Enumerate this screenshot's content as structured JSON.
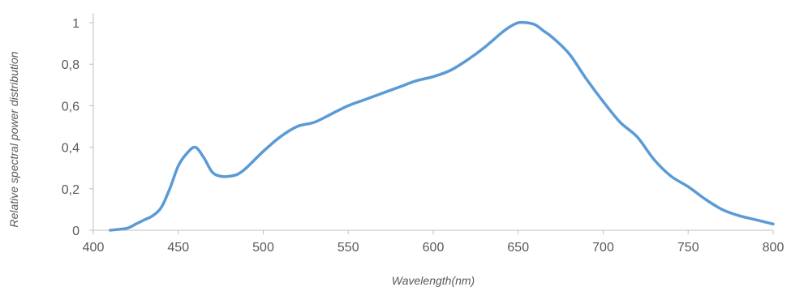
{
  "chart_data": {
    "type": "line",
    "title": "",
    "xlabel": "Wavelength(nm)",
    "ylabel": "Relative spectral power distribution",
    "xlim": [
      400,
      800
    ],
    "ylim": [
      0,
      1
    ],
    "x_ticks": [
      400,
      450,
      500,
      550,
      600,
      650,
      700,
      750,
      800
    ],
    "y_ticks": [
      0,
      0.2,
      0.4,
      0.6,
      0.8,
      1
    ],
    "x_tick_labels": [
      "400",
      "450",
      "500",
      "550",
      "600",
      "650",
      "700",
      "750",
      "800"
    ],
    "y_tick_labels": [
      "0",
      "0,2",
      "0,4",
      "0,6",
      "0,8",
      "1"
    ],
    "grid": false,
    "legend": "none",
    "series": [
      {
        "color": "#5b9bd5",
        "x": [
          410,
          420,
          425,
          430,
          435,
          440,
          445,
          450,
          455,
          460,
          465,
          470,
          475,
          480,
          485,
          490,
          500,
          510,
          520,
          530,
          540,
          550,
          560,
          570,
          580,
          590,
          600,
          610,
          620,
          630,
          640,
          645,
          650,
          655,
          660,
          665,
          670,
          680,
          690,
          700,
          710,
          720,
          730,
          740,
          750,
          760,
          770,
          780,
          790,
          800
        ],
        "y": [
          0.0,
          0.01,
          0.03,
          0.05,
          0.07,
          0.11,
          0.2,
          0.31,
          0.37,
          0.4,
          0.35,
          0.28,
          0.26,
          0.26,
          0.27,
          0.3,
          0.38,
          0.45,
          0.5,
          0.52,
          0.56,
          0.6,
          0.63,
          0.66,
          0.69,
          0.72,
          0.74,
          0.77,
          0.82,
          0.88,
          0.95,
          0.98,
          1.0,
          1.0,
          0.99,
          0.96,
          0.93,
          0.85,
          0.73,
          0.62,
          0.52,
          0.45,
          0.34,
          0.26,
          0.21,
          0.15,
          0.1,
          0.07,
          0.05,
          0.03
        ]
      }
    ]
  }
}
